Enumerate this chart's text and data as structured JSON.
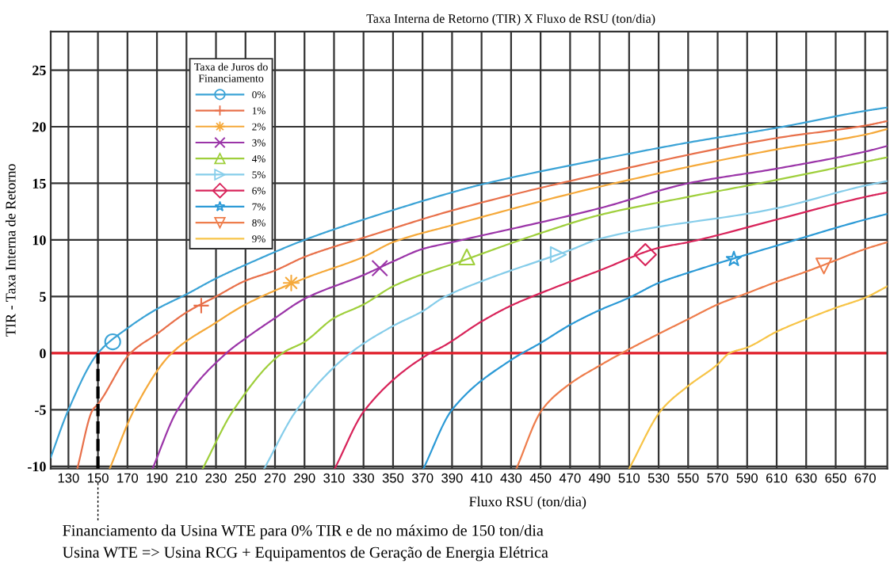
{
  "chart_data": {
    "type": "line",
    "title": "Taxa Interna de Retorno (TIR) X Fluxo de RSU (ton/dia)",
    "xlabel": "Fluxo RSU (ton/dia)",
    "ylabel": "TIR - Taxa Interna de Retorno",
    "legend_title": "Taxa de Juros do\nFinanciamento",
    "legend": "top left",
    "grid": true,
    "xlim": [
      118,
      685
    ],
    "ylim": [
      -10.2,
      28.4
    ],
    "xticks": [
      130,
      150,
      170,
      190,
      210,
      230,
      250,
      270,
      290,
      310,
      330,
      350,
      370,
      390,
      410,
      430,
      450,
      470,
      490,
      510,
      530,
      550,
      570,
      590,
      610,
      630,
      650,
      670
    ],
    "yticks": [
      -10,
      -5,
      0,
      5,
      10,
      15,
      20,
      25
    ],
    "series": [
      {
        "name": "0%",
        "color": "#3ba3d6",
        "x": [
          118,
          130,
          150,
          170,
          190,
          210,
          230,
          250,
          290,
          330,
          390,
          410,
          490,
          550,
          610,
          670,
          685
        ],
        "values": [
          -9.2,
          -5,
          0,
          2.2,
          3.9,
          5.2,
          6.6,
          7.8,
          10.0,
          11.8,
          14.2,
          14.9,
          17.1,
          18.6,
          19.9,
          21.4,
          21.7
        ]
      },
      {
        "name": "1%",
        "color": "#e8704a",
        "x": [
          136,
          146.5,
          150,
          172,
          190,
          210,
          230,
          250,
          270,
          290,
          310,
          330,
          390,
          490,
          610,
          670,
          685
        ],
        "values": [
          -10.2,
          -5,
          -4.5,
          0,
          1.7,
          3.6,
          5.0,
          6.4,
          7.3,
          8.5,
          9.4,
          10.2,
          12.6,
          15.8,
          19.0,
          20.1,
          20.5
        ]
      },
      {
        "name": "2%",
        "color": "#f5a93a",
        "x": [
          158,
          174.6,
          200,
          230,
          250,
          290,
          330,
          350,
          390,
          490,
          610,
          670,
          685
        ],
        "values": [
          -10.2,
          -5,
          0,
          2.7,
          4.3,
          6.6,
          8.5,
          9.8,
          11.3,
          14.7,
          18.0,
          19.3,
          19.8
        ]
      },
      {
        "name": "3%",
        "color": "#9b35a8",
        "x": [
          187,
          204,
          237,
          250,
          270,
          290,
          330,
          350,
          370,
          390,
          490,
          550,
          610,
          670,
          685
        ],
        "values": [
          -10.2,
          -5,
          0,
          1.3,
          3.1,
          4.8,
          6.9,
          8.1,
          9.2,
          9.8,
          12.8,
          15.0,
          16.3,
          17.8,
          18.3
        ]
      },
      {
        "name": "4%",
        "color": "#9fcf3c",
        "x": [
          221,
          242,
          275,
          290,
          310,
          330,
          350,
          400,
          450,
          490,
          550,
          610,
          670,
          685
        ],
        "values": [
          -10.2,
          -5,
          0,
          1.0,
          3.1,
          4.3,
          5.9,
          8.3,
          10.6,
          12.2,
          13.8,
          15.3,
          16.9,
          17.3
        ]
      },
      {
        "name": "5%",
        "color": "#86cdea",
        "x": [
          262.7,
          284.8,
          321,
          350,
          370,
          384,
          411,
          470,
          490,
          610,
          670,
          685
        ],
        "values": [
          -10.2,
          -5,
          0,
          2.4,
          3.7,
          4.9,
          6.4,
          9.1,
          10.1,
          12.8,
          14.8,
          15.2
        ]
      },
      {
        "name": "6%",
        "color": "#d8245a",
        "x": [
          310.5,
          331,
          375,
          384,
          410,
          430,
          450,
          490,
          530,
          550,
          610,
          670,
          685
        ],
        "values": [
          -10.2,
          -5,
          0,
          0.6,
          2.8,
          4.2,
          5.3,
          7.3,
          9.3,
          9.8,
          11.8,
          13.8,
          14.2
        ]
      },
      {
        "name": "7%",
        "color": "#2c9ad6",
        "x": [
          370.6,
          390,
          430,
          450,
          470,
          490,
          510,
          530,
          550,
          610,
          670,
          685
        ],
        "values": [
          -10.2,
          -5,
          -0.6,
          0.9,
          2.5,
          3.8,
          4.9,
          6.2,
          7.1,
          9.5,
          11.8,
          12.3
        ]
      },
      {
        "name": "8%",
        "color": "#ee7d4c",
        "x": [
          433.6,
          451,
          470,
          490,
          505,
          530,
          550,
          570,
          590,
          610,
          630,
          650,
          670,
          685
        ],
        "values": [
          -10.2,
          -5,
          -2.7,
          -1.1,
          0,
          1.7,
          3.0,
          4.3,
          5.3,
          6.3,
          7.2,
          8.2,
          9.2,
          9.8
        ]
      },
      {
        "name": "9%",
        "color": "#f7c447",
        "x": [
          510,
          532,
          550,
          570,
          578,
          590,
          610,
          630,
          650,
          670,
          685
        ],
        "values": [
          -10.2,
          -5,
          -2.9,
          -1.0,
          0,
          0.5,
          1.9,
          3.0,
          4.0,
          4.9,
          5.9
        ]
      },
      {
        "type": "scatter",
        "color": "#3ba3d6",
        "marker": "circle",
        "x": [
          160
        ],
        "values": [
          1.0
        ]
      },
      {
        "type": "scatter",
        "color": "#e8704a",
        "marker": "plus",
        "x": [
          220
        ],
        "values": [
          4.2
        ]
      },
      {
        "type": "scatter",
        "color": "#f5a93a",
        "marker": "asterisk",
        "x": [
          281
        ],
        "values": [
          6.2
        ]
      },
      {
        "type": "scatter",
        "color": "#9b35a8",
        "marker": "cross",
        "x": [
          341
        ],
        "values": [
          7.5
        ]
      },
      {
        "type": "scatter",
        "color": "#9fcf3c",
        "marker": "triangle",
        "x": [
          400
        ],
        "values": [
          8.5
        ]
      },
      {
        "type": "scatter",
        "color": "#86cdea",
        "marker": "triangle_right",
        "x": [
          462
        ],
        "values": [
          8.7
        ]
      },
      {
        "type": "scatter",
        "color": "#d8245a",
        "marker": "diamond",
        "x": [
          521
        ],
        "values": [
          8.7
        ]
      },
      {
        "type": "scatter",
        "color": "#2c9ad6",
        "marker": "star",
        "x": [
          581
        ],
        "values": [
          8.3
        ]
      },
      {
        "type": "scatter",
        "color": "#ee7d4c",
        "marker": "triangle_down",
        "x": [
          642
        ],
        "values": [
          7.7
        ]
      }
    ],
    "ref_lines": [
      {
        "axis": "y",
        "value": 0,
        "color": "#e3202c",
        "line_style": "solid"
      },
      {
        "axis": "x",
        "value": 150,
        "color": "#000000",
        "line_style": "dashed"
      }
    ],
    "annotations": [
      "Financiamento da Usina WTE para 0% TIR e de no máximo de 150 ton/dia",
      "Usina WTE => Usina RCG + Equipamentos de Geração de Energia Elétrica"
    ]
  }
}
